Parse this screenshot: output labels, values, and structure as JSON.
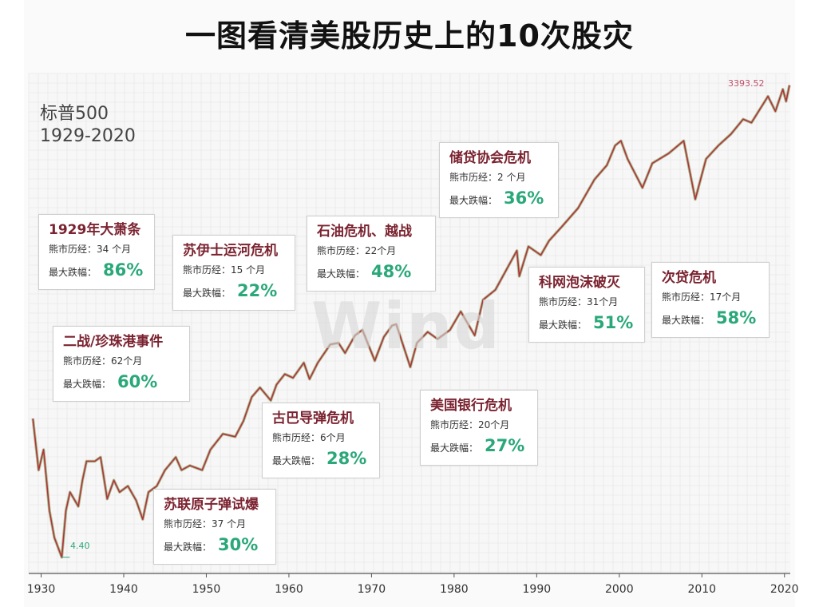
{
  "title": "一图看清美股历史上的10次股灾",
  "index_name": "标普500",
  "period": "1929-2020",
  "watermark": "Wind",
  "peak_label": "3393.52",
  "low_label": "4.40",
  "labels": {
    "bear": "熊市历经：",
    "drop": "最大跌幅："
  },
  "events": [
    {
      "name": "1929年大萧条",
      "duration": "34 个月",
      "drop": "86%"
    },
    {
      "name": "二战/珍珠港事件",
      "duration": "62个月",
      "drop": "60%"
    },
    {
      "name": "苏伊士运河危机",
      "duration": "15 个月",
      "drop": "22%"
    },
    {
      "name": "苏联原子弹试爆",
      "duration": "37 个月",
      "drop": "30%"
    },
    {
      "name": "石油危机、越战",
      "duration": "22个月",
      "drop": "48%"
    },
    {
      "name": "古巴导弹危机",
      "duration": "6个月",
      "drop": "28%"
    },
    {
      "name": "储贷协会危机",
      "duration": "2 个月",
      "drop": "36%"
    },
    {
      "name": "美国银行危机",
      "duration": "20个月",
      "drop": "27%"
    },
    {
      "name": "科网泡沫破灭",
      "duration": "31个月",
      "drop": "51%"
    },
    {
      "name": "次贷危机",
      "duration": "17个月",
      "drop": "58%"
    }
  ],
  "chart_data": {
    "type": "line",
    "title": "一图看清美股历史上的10次股灾",
    "scale": "log",
    "grid": true,
    "x_ticks": [
      "1930",
      "1940",
      "1950",
      "1960",
      "1970",
      "1980",
      "1990",
      "2000",
      "2010",
      "2020"
    ],
    "xlim": [
      1928.5,
      2020.7
    ],
    "ylim": [
      3.5,
      4000
    ],
    "series": [
      {
        "x": [
          1929.0,
          1929.7,
          1930.3,
          1931.0,
          1931.6,
          1932.5,
          1933.0,
          1933.5,
          1934.5,
          1935.0,
          1935.5,
          1936.5,
          1937.2,
          1938.0,
          1938.8,
          1939.5,
          1940.5,
          1941.5,
          1942.3,
          1943.0,
          1944.0,
          1945.0,
          1946.3,
          1947.0,
          1948.0,
          1949.5,
          1950.5,
          1952.0,
          1953.5,
          1954.5,
          1955.5,
          1956.5,
          1957.8,
          1958.5,
          1959.5,
          1960.5,
          1961.8,
          1962.5,
          1963.5,
          1965.0,
          1966.0,
          1966.8,
          1968.0,
          1968.9,
          1970.4,
          1971.5,
          1972.5,
          1973.0,
          1974.7,
          1975.5,
          1976.8,
          1978.0,
          1979.5,
          1980.8,
          1982.5,
          1983.5,
          1985.0,
          1987.6,
          1987.9,
          1989.0,
          1990.5,
          1991.5,
          1993.0,
          1995.0,
          1997.0,
          1998.5,
          1999.5,
          2000.2,
          2001.0,
          2002.8,
          2004.0,
          2006.0,
          2007.8,
          2009.2,
          2010.5,
          2012.0,
          2013.5,
          2015.0,
          2016.0,
          2018.0,
          2018.9,
          2019.8,
          2020.2,
          2020.6
        ],
        "y": [
          31,
          15,
          20,
          8.5,
          5.8,
          4.4,
          8.5,
          11,
          9,
          13,
          17,
          17,
          18,
          10,
          13,
          11,
          12,
          9.8,
          7.5,
          11,
          12,
          15,
          18,
          15,
          16,
          15,
          20,
          25,
          24,
          30,
          42,
          48,
          40,
          50,
          58,
          55,
          68,
          54,
          68,
          88,
          90,
          78,
          100,
          108,
          70,
          98,
          115,
          117,
          64,
          90,
          105,
          95,
          108,
          140,
          100,
          165,
          190,
          330,
          230,
          350,
          310,
          380,
          460,
          600,
          900,
          1100,
          1450,
          1550,
          1200,
          800,
          1130,
          1300,
          1550,
          680,
          1200,
          1450,
          1700,
          2100,
          2000,
          2900,
          2350,
          3200,
          2700,
          3393.52
        ]
      }
    ]
  }
}
